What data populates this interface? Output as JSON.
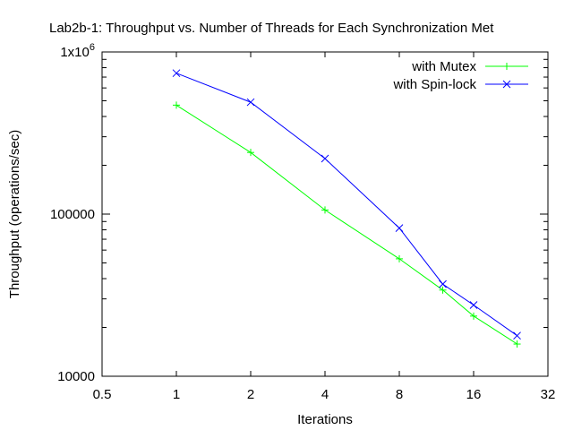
{
  "chart_data": {
    "type": "line",
    "title": "Lab2b-1: Throughput vs. Number of Threads for Each Synchronization Met",
    "xlabel": "Iterations",
    "ylabel": "Throughput (operations/sec)",
    "x_scale": "log2",
    "y_scale": "log10",
    "xlim": [
      0.5,
      32
    ],
    "ylim": [
      10000,
      1000000
    ],
    "x_ticks": [
      {
        "value": 0.5,
        "label": "0.5"
      },
      {
        "value": 1,
        "label": "1"
      },
      {
        "value": 2,
        "label": "2"
      },
      {
        "value": 4,
        "label": "4"
      },
      {
        "value": 8,
        "label": "8"
      },
      {
        "value": 16,
        "label": "16"
      },
      {
        "value": 32,
        "label": "32"
      }
    ],
    "y_ticks": [
      {
        "value": 10000,
        "label": "10000"
      },
      {
        "value": 100000,
        "label": "100000"
      },
      {
        "value": 1000000,
        "label": "1x10",
        "sup": "6"
      }
    ],
    "grid": false,
    "legend_position": "top-right",
    "series": [
      {
        "name": "with Mutex",
        "color": "#00ff00",
        "marker": "plus",
        "x": [
          1,
          2,
          4,
          8,
          12,
          16,
          24
        ],
        "y": [
          470000,
          240000,
          106000,
          53000,
          34000,
          23500,
          15800
        ]
      },
      {
        "name": "with Spin-lock",
        "color": "#0000ff",
        "marker": "cross",
        "x": [
          1,
          2,
          4,
          8,
          12,
          16,
          24
        ],
        "y": [
          740000,
          490000,
          220000,
          82000,
          37000,
          27500,
          17800
        ]
      }
    ]
  }
}
